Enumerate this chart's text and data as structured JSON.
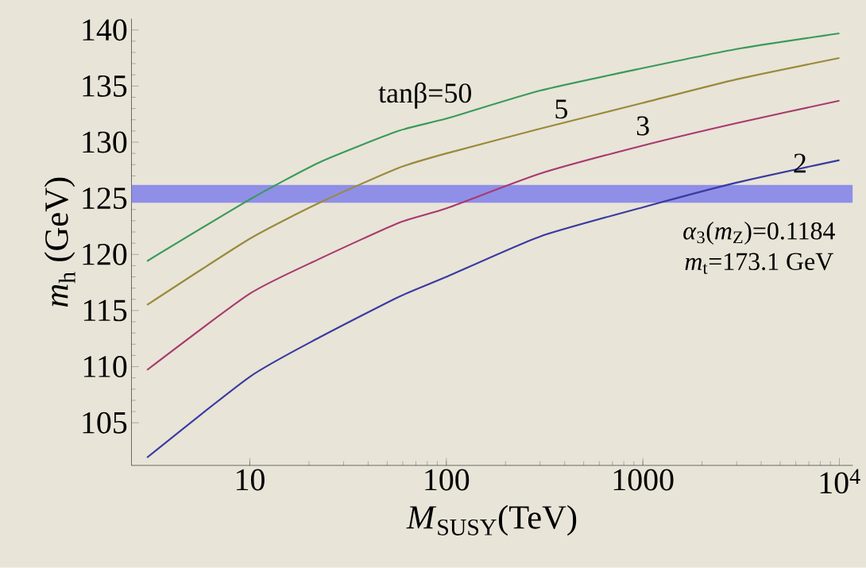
{
  "chart_data": {
    "type": "line",
    "xlabel": "*M*$_{SUSY}$(TeV)",
    "ylabel": "*m*$_{h}$ (GeV)",
    "log": "x",
    "xlim": [
      2.5,
      11700
    ],
    "ylim": [
      101.2,
      141
    ],
    "xticks": [
      10,
      100,
      1000,
      {
        "value": 10000,
        "label": "10$^{4}$"
      }
    ],
    "yticks": [
      105,
      110,
      115,
      120,
      125,
      130,
      135,
      140
    ],
    "grid": false,
    "legend": false,
    "marker": "none",
    "line_style": "solid",
    "x": [
      3,
      10,
      22.6,
      57,
      100,
      300,
      1000,
      3000,
      10000
    ],
    "series": [
      {
        "name": "tanβ=50",
        "color": "#3a9a5a",
        "values": [
          119.4,
          124.9,
          128.2,
          131.0,
          132.1,
          134.6,
          136.6,
          138.3,
          139.7
        ]
      },
      {
        "name": "5",
        "color": "#9a8a3a",
        "values": [
          115.5,
          121.4,
          124.6,
          127.7,
          129.0,
          131.2,
          133.5,
          135.6,
          137.5
        ]
      },
      {
        "name": "3",
        "color": "#a83a6e",
        "values": [
          109.7,
          116.5,
          119.6,
          122.8,
          124.1,
          127.2,
          129.7,
          131.7,
          133.7
        ]
      },
      {
        "name": "2",
        "color": "#3a3aa0",
        "values": [
          101.9,
          109.1,
          112.6,
          116.2,
          118.0,
          121.6,
          124.2,
          126.4,
          128.4
        ]
      }
    ],
    "bands": [
      {
        "axis": "y",
        "from": 124.6,
        "to": 126.2,
        "color": "#8f8fe8"
      }
    ],
    "annotations": [
      "*α*$_{3}$(*m*$_{Z}$)=0.1184",
      "*m*$_{t}$=173.1 GeV"
    ]
  }
}
